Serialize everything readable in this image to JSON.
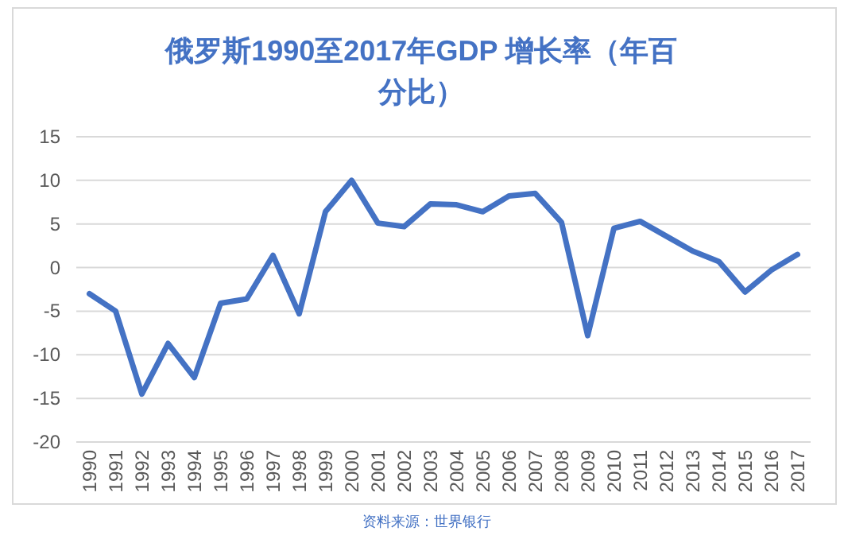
{
  "chart_data": {
    "type": "line",
    "title": "俄罗斯1990至2017年GDP 增长率（年百分比）",
    "categories": [
      "1990",
      "1991",
      "1992",
      "1993",
      "1994",
      "1995",
      "1996",
      "1997",
      "1998",
      "1999",
      "2000",
      "2001",
      "2002",
      "2003",
      "2004",
      "2005",
      "2006",
      "2007",
      "2008",
      "2009",
      "2010",
      "2011",
      "2012",
      "2013",
      "2014",
      "2015",
      "2016",
      "2017"
    ],
    "series": [
      {
        "color": "#4472c4",
        "values": [
          -3.0,
          -5.0,
          -14.5,
          -8.7,
          -12.6,
          -4.1,
          -3.6,
          1.4,
          -5.3,
          6.4,
          10.0,
          5.1,
          4.7,
          7.3,
          7.2,
          6.4,
          8.2,
          8.5,
          5.2,
          -7.8,
          4.5,
          5.3,
          3.6,
          1.9,
          0.7,
          -2.8,
          -0.3,
          1.5
        ]
      }
    ],
    "ylim": [
      -20,
      15
    ],
    "yticks": [
      -20,
      -15,
      -10,
      -5,
      0,
      5,
      10,
      15
    ],
    "grid": "y",
    "marker": "none",
    "line_style": "solid",
    "annotations": [
      "资料来源：世界银行"
    ]
  }
}
